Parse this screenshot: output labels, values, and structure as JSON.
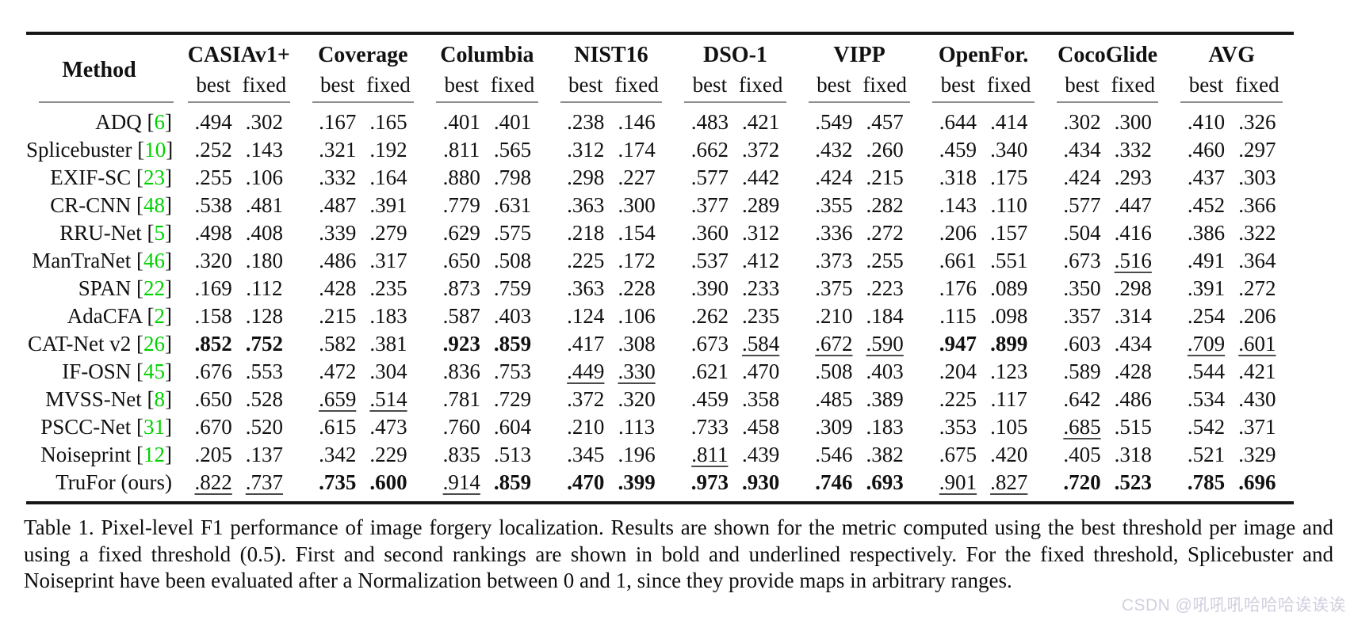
{
  "colors": {
    "citation_green": "#00d200",
    "watermark_gray": "#d2cfdf",
    "rule_dark": "#161616",
    "rule_mid": "#8d8d8d"
  },
  "table": {
    "method_header": "Method",
    "subcolumns": [
      "best",
      "fixed"
    ],
    "datasets": [
      "CASIAv1+",
      "Coverage",
      "Columbia",
      "NIST16",
      "DSO-1",
      "VIPP",
      "OpenFor.",
      "CocoGlide",
      "AVG"
    ],
    "rows": [
      {
        "method": "ADQ",
        "cite": "6",
        "cells": [
          [
            ".494",
            ""
          ],
          [
            ".302",
            ""
          ],
          [
            ".167",
            ""
          ],
          [
            ".165",
            ""
          ],
          [
            ".401",
            ""
          ],
          [
            ".401",
            ""
          ],
          [
            ".238",
            ""
          ],
          [
            ".146",
            ""
          ],
          [
            ".483",
            ""
          ],
          [
            ".421",
            ""
          ],
          [
            ".549",
            ""
          ],
          [
            ".457",
            ""
          ],
          [
            ".644",
            ""
          ],
          [
            ".414",
            ""
          ],
          [
            ".302",
            ""
          ],
          [
            ".300",
            ""
          ],
          [
            ".410",
            ""
          ],
          [
            ".326",
            ""
          ]
        ]
      },
      {
        "method": "Splicebuster",
        "cite": "10",
        "cells": [
          [
            ".252",
            ""
          ],
          [
            ".143",
            ""
          ],
          [
            ".321",
            ""
          ],
          [
            ".192",
            ""
          ],
          [
            ".811",
            ""
          ],
          [
            ".565",
            ""
          ],
          [
            ".312",
            ""
          ],
          [
            ".174",
            ""
          ],
          [
            ".662",
            ""
          ],
          [
            ".372",
            ""
          ],
          [
            ".432",
            ""
          ],
          [
            ".260",
            ""
          ],
          [
            ".459",
            ""
          ],
          [
            ".340",
            ""
          ],
          [
            ".434",
            ""
          ],
          [
            ".332",
            ""
          ],
          [
            ".460",
            ""
          ],
          [
            ".297",
            ""
          ]
        ]
      },
      {
        "method": "EXIF-SC",
        "cite": "23",
        "cells": [
          [
            ".255",
            ""
          ],
          [
            ".106",
            ""
          ],
          [
            ".332",
            ""
          ],
          [
            ".164",
            ""
          ],
          [
            ".880",
            ""
          ],
          [
            ".798",
            ""
          ],
          [
            ".298",
            ""
          ],
          [
            ".227",
            ""
          ],
          [
            ".577",
            ""
          ],
          [
            ".442",
            ""
          ],
          [
            ".424",
            ""
          ],
          [
            ".215",
            ""
          ],
          [
            ".318",
            ""
          ],
          [
            ".175",
            ""
          ],
          [
            ".424",
            ""
          ],
          [
            ".293",
            ""
          ],
          [
            ".437",
            ""
          ],
          [
            ".303",
            ""
          ]
        ]
      },
      {
        "method": "CR-CNN",
        "cite": "48",
        "cells": [
          [
            ".538",
            ""
          ],
          [
            ".481",
            ""
          ],
          [
            ".487",
            ""
          ],
          [
            ".391",
            ""
          ],
          [
            ".779",
            ""
          ],
          [
            ".631",
            ""
          ],
          [
            ".363",
            ""
          ],
          [
            ".300",
            ""
          ],
          [
            ".377",
            ""
          ],
          [
            ".289",
            ""
          ],
          [
            ".355",
            ""
          ],
          [
            ".282",
            ""
          ],
          [
            ".143",
            ""
          ],
          [
            ".110",
            ""
          ],
          [
            ".577",
            ""
          ],
          [
            ".447",
            ""
          ],
          [
            ".452",
            ""
          ],
          [
            ".366",
            ""
          ]
        ]
      },
      {
        "method": "RRU-Net",
        "cite": "5",
        "cells": [
          [
            ".498",
            ""
          ],
          [
            ".408",
            ""
          ],
          [
            ".339",
            ""
          ],
          [
            ".279",
            ""
          ],
          [
            ".629",
            ""
          ],
          [
            ".575",
            ""
          ],
          [
            ".218",
            ""
          ],
          [
            ".154",
            ""
          ],
          [
            ".360",
            ""
          ],
          [
            ".312",
            ""
          ],
          [
            ".336",
            ""
          ],
          [
            ".272",
            ""
          ],
          [
            ".206",
            ""
          ],
          [
            ".157",
            ""
          ],
          [
            ".504",
            ""
          ],
          [
            ".416",
            ""
          ],
          [
            ".386",
            ""
          ],
          [
            ".322",
            ""
          ]
        ]
      },
      {
        "method": "ManTraNet",
        "cite": "46",
        "cells": [
          [
            ".320",
            ""
          ],
          [
            ".180",
            ""
          ],
          [
            ".486",
            ""
          ],
          [
            ".317",
            ""
          ],
          [
            ".650",
            ""
          ],
          [
            ".508",
            ""
          ],
          [
            ".225",
            ""
          ],
          [
            ".172",
            ""
          ],
          [
            ".537",
            ""
          ],
          [
            ".412",
            ""
          ],
          [
            ".373",
            ""
          ],
          [
            ".255",
            ""
          ],
          [
            ".661",
            ""
          ],
          [
            ".551",
            ""
          ],
          [
            ".673",
            ""
          ],
          [
            ".516",
            "u"
          ],
          [
            ".491",
            ""
          ],
          [
            ".364",
            ""
          ]
        ]
      },
      {
        "method": "SPAN",
        "cite": "22",
        "cells": [
          [
            ".169",
            ""
          ],
          [
            ".112",
            ""
          ],
          [
            ".428",
            ""
          ],
          [
            ".235",
            ""
          ],
          [
            ".873",
            ""
          ],
          [
            ".759",
            ""
          ],
          [
            ".363",
            ""
          ],
          [
            ".228",
            ""
          ],
          [
            ".390",
            ""
          ],
          [
            ".233",
            ""
          ],
          [
            ".375",
            ""
          ],
          [
            ".223",
            ""
          ],
          [
            ".176",
            ""
          ],
          [
            ".089",
            ""
          ],
          [
            ".350",
            ""
          ],
          [
            ".298",
            ""
          ],
          [
            ".391",
            ""
          ],
          [
            ".272",
            ""
          ]
        ]
      },
      {
        "method": "AdaCFA",
        "cite": "2",
        "cells": [
          [
            ".158",
            ""
          ],
          [
            ".128",
            ""
          ],
          [
            ".215",
            ""
          ],
          [
            ".183",
            ""
          ],
          [
            ".587",
            ""
          ],
          [
            ".403",
            ""
          ],
          [
            ".124",
            ""
          ],
          [
            ".106",
            ""
          ],
          [
            ".262",
            ""
          ],
          [
            ".235",
            ""
          ],
          [
            ".210",
            ""
          ],
          [
            ".184",
            ""
          ],
          [
            ".115",
            ""
          ],
          [
            ".098",
            ""
          ],
          [
            ".357",
            ""
          ],
          [
            ".314",
            ""
          ],
          [
            ".254",
            ""
          ],
          [
            ".206",
            ""
          ]
        ]
      },
      {
        "method": "CAT-Net v2",
        "cite": "26",
        "cells": [
          [
            ".852",
            "b"
          ],
          [
            ".752",
            "b"
          ],
          [
            ".582",
            ""
          ],
          [
            ".381",
            ""
          ],
          [
            ".923",
            "b"
          ],
          [
            ".859",
            "b"
          ],
          [
            ".417",
            ""
          ],
          [
            ".308",
            ""
          ],
          [
            ".673",
            ""
          ],
          [
            ".584",
            "u"
          ],
          [
            ".672",
            "u"
          ],
          [
            ".590",
            "u"
          ],
          [
            ".947",
            "b"
          ],
          [
            ".899",
            "b"
          ],
          [
            ".603",
            ""
          ],
          [
            ".434",
            ""
          ],
          [
            ".709",
            "u"
          ],
          [
            ".601",
            "u"
          ]
        ]
      },
      {
        "method": "IF-OSN",
        "cite": "45",
        "cells": [
          [
            ".676",
            ""
          ],
          [
            ".553",
            ""
          ],
          [
            ".472",
            ""
          ],
          [
            ".304",
            ""
          ],
          [
            ".836",
            ""
          ],
          [
            ".753",
            ""
          ],
          [
            ".449",
            "u"
          ],
          [
            ".330",
            "u"
          ],
          [
            ".621",
            ""
          ],
          [
            ".470",
            ""
          ],
          [
            ".508",
            ""
          ],
          [
            ".403",
            ""
          ],
          [
            ".204",
            ""
          ],
          [
            ".123",
            ""
          ],
          [
            ".589",
            ""
          ],
          [
            ".428",
            ""
          ],
          [
            ".544",
            ""
          ],
          [
            ".421",
            ""
          ]
        ]
      },
      {
        "method": "MVSS-Net",
        "cite": "8",
        "cells": [
          [
            ".650",
            ""
          ],
          [
            ".528",
            ""
          ],
          [
            ".659",
            "u"
          ],
          [
            ".514",
            "u"
          ],
          [
            ".781",
            ""
          ],
          [
            ".729",
            ""
          ],
          [
            ".372",
            ""
          ],
          [
            ".320",
            ""
          ],
          [
            ".459",
            ""
          ],
          [
            ".358",
            ""
          ],
          [
            ".485",
            ""
          ],
          [
            ".389",
            ""
          ],
          [
            ".225",
            ""
          ],
          [
            ".117",
            ""
          ],
          [
            ".642",
            ""
          ],
          [
            ".486",
            ""
          ],
          [
            ".534",
            ""
          ],
          [
            ".430",
            ""
          ]
        ]
      },
      {
        "method": "PSCC-Net",
        "cite": "31",
        "cells": [
          [
            ".670",
            ""
          ],
          [
            ".520",
            ""
          ],
          [
            ".615",
            ""
          ],
          [
            ".473",
            ""
          ],
          [
            ".760",
            ""
          ],
          [
            ".604",
            ""
          ],
          [
            ".210",
            ""
          ],
          [
            ".113",
            ""
          ],
          [
            ".733",
            ""
          ],
          [
            ".458",
            ""
          ],
          [
            ".309",
            ""
          ],
          [
            ".183",
            ""
          ],
          [
            ".353",
            ""
          ],
          [
            ".105",
            ""
          ],
          [
            ".685",
            "u"
          ],
          [
            ".515",
            ""
          ],
          [
            ".542",
            ""
          ],
          [
            ".371",
            ""
          ]
        ]
      },
      {
        "method": "Noiseprint",
        "cite": "12",
        "cells": [
          [
            ".205",
            ""
          ],
          [
            ".137",
            ""
          ],
          [
            ".342",
            ""
          ],
          [
            ".229",
            ""
          ],
          [
            ".835",
            ""
          ],
          [
            ".513",
            ""
          ],
          [
            ".345",
            ""
          ],
          [
            ".196",
            ""
          ],
          [
            ".811",
            "u"
          ],
          [
            ".439",
            ""
          ],
          [
            ".546",
            ""
          ],
          [
            ".382",
            ""
          ],
          [
            ".675",
            ""
          ],
          [
            ".420",
            ""
          ],
          [
            ".405",
            ""
          ],
          [
            ".318",
            ""
          ],
          [
            ".521",
            ""
          ],
          [
            ".329",
            ""
          ]
        ]
      },
      {
        "method": "TruFor (ours)",
        "cite": null,
        "cells": [
          [
            ".822",
            "u"
          ],
          [
            ".737",
            "u"
          ],
          [
            ".735",
            "b"
          ],
          [
            ".600",
            "b"
          ],
          [
            ".914",
            "u"
          ],
          [
            ".859",
            "b"
          ],
          [
            ".470",
            "b"
          ],
          [
            ".399",
            "b"
          ],
          [
            ".973",
            "b"
          ],
          [
            ".930",
            "b"
          ],
          [
            ".746",
            "b"
          ],
          [
            ".693",
            "b"
          ],
          [
            ".901",
            "u"
          ],
          [
            ".827",
            "u"
          ],
          [
            ".720",
            "b"
          ],
          [
            ".523",
            "b"
          ],
          [
            ".785",
            "b"
          ],
          [
            ".696",
            "b"
          ]
        ]
      }
    ]
  },
  "caption": {
    "text": "Table 1. Pixel-level F1 performance of image forgery localization. Results are shown for the metric computed using the best threshold per image and using a fixed threshold (0.5). First and second rankings are shown in bold and underlined respectively. For the fixed threshold, Splicebuster and Noiseprint have been evaluated after a Normalization between 0 and 1, since they provide maps in arbitrary ranges."
  },
  "watermark": {
    "text": "CSDN @吼吼吼哈哈哈诶诶诶"
  }
}
